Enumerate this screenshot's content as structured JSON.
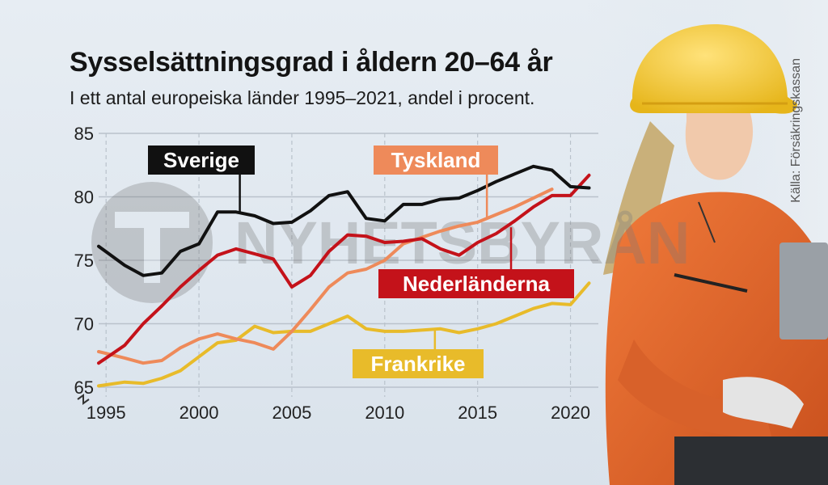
{
  "header": {
    "title": "Sysselsättningsgrad i åldern 20–64 år",
    "subtitle": "I ett antal europeiska länder 1995–2021, andel i procent.",
    "source": "Källa: Försäkringskassan"
  },
  "watermark": {
    "text": "NYHETSBYRÅN"
  },
  "colors": {
    "sverige": "#111111",
    "tyskland": "#ee8a5a",
    "nederlanderna": "#c4121a",
    "frankrike": "#e8bb2a",
    "grid": "#b9c2cb"
  },
  "chart_data": {
    "type": "line",
    "title": "Sysselsättningsgrad i åldern 20–64 år",
    "subtitle": "I ett antal europeiska länder 1995–2021, andel i procent.",
    "ylim": [
      65,
      85
    ],
    "xlim": [
      1994.6,
      2021.5
    ],
    "yticks": [
      65,
      70,
      75,
      80,
      85
    ],
    "xticks": [
      1995,
      2000,
      2005,
      2010,
      2015,
      2020
    ],
    "grid": true,
    "series": [
      {
        "name": "Sverige",
        "color": "#111111",
        "x": [
          1994.6,
          1996,
          1997,
          1998,
          1999,
          2000,
          2001,
          2002,
          2003,
          2004,
          2005,
          2006,
          2007,
          2008,
          2009,
          2010,
          2011,
          2012,
          2013,
          2014,
          2015,
          2016,
          2017,
          2018,
          2019,
          2020,
          2021
        ],
        "values": [
          76.1,
          74.6,
          73.8,
          74.0,
          75.7,
          76.3,
          78.8,
          78.8,
          78.5,
          77.9,
          78.0,
          78.9,
          80.1,
          80.4,
          78.3,
          78.1,
          79.4,
          79.4,
          79.8,
          79.9,
          80.5,
          81.2,
          81.8,
          82.4,
          82.1,
          80.8,
          80.7
        ]
      },
      {
        "name": "Tyskland",
        "color": "#ee8a5a",
        "x": [
          1994.6,
          1996,
          1997,
          1998,
          1999,
          2000,
          2001,
          2002,
          2003,
          2004,
          2005,
          2006,
          2007,
          2008,
          2009,
          2010,
          2011,
          2012,
          2013,
          2014,
          2015,
          2016,
          2017,
          2018,
          2019
        ],
        "values": [
          67.8,
          67.3,
          66.9,
          67.1,
          68.1,
          68.8,
          69.2,
          68.8,
          68.5,
          68.0,
          69.4,
          71.1,
          72.9,
          74.0,
          74.3,
          75.0,
          76.3,
          76.8,
          77.3,
          77.7,
          78.0,
          78.6,
          79.2,
          79.9,
          80.6
        ]
      },
      {
        "name": "Nederländerna",
        "color": "#c4121a",
        "x": [
          1994.6,
          1996,
          1997,
          1998,
          1999,
          2000,
          2001,
          2002,
          2003,
          2004,
          2005,
          2006,
          2007,
          2008,
          2009,
          2010,
          2011,
          2012,
          2013,
          2014,
          2015,
          2016,
          2017,
          2018,
          2019,
          2020,
          2021
        ],
        "values": [
          66.9,
          68.3,
          70.0,
          71.4,
          72.9,
          74.2,
          75.4,
          75.9,
          75.5,
          75.1,
          72.9,
          73.8,
          75.7,
          77.0,
          76.9,
          76.4,
          76.5,
          76.7,
          75.9,
          75.4,
          76.4,
          77.1,
          78.1,
          79.2,
          80.1,
          80.1,
          81.7
        ]
      },
      {
        "name": "Frankrike",
        "color": "#e8bb2a",
        "x": [
          1994.6,
          1996,
          1997,
          1998,
          1999,
          2000,
          2001,
          2002,
          2003,
          2004,
          2005,
          2006,
          2007,
          2008,
          2009,
          2010,
          2011,
          2012,
          2013,
          2014,
          2015,
          2016,
          2017,
          2018,
          2019,
          2020,
          2021
        ],
        "values": [
          65.1,
          65.4,
          65.3,
          65.7,
          66.3,
          67.4,
          68.5,
          68.7,
          69.8,
          69.3,
          69.4,
          69.4,
          70.0,
          70.6,
          69.6,
          69.4,
          69.4,
          69.5,
          69.6,
          69.3,
          69.6,
          70.0,
          70.6,
          71.2,
          71.6,
          71.5,
          73.2
        ]
      }
    ],
    "labels": [
      {
        "series": "Sverige",
        "text": "Sverige",
        "bg": "#111111",
        "fg": "#ffffff",
        "at": [
          2002.2,
          78.8
        ]
      },
      {
        "series": "Tyskland",
        "text": "Tyskland",
        "bg": "#ee8a5a",
        "fg": "#ffffff",
        "at": [
          2015.5,
          78.2
        ]
      },
      {
        "series": "Nederländerna",
        "text": "Nederländerna",
        "bg": "#c4121a",
        "fg": "#ffffff",
        "at": [
          2016.8,
          77.6
        ]
      },
      {
        "series": "Frankrike",
        "text": "Frankrike",
        "bg": "#e8bb2a",
        "fg": "#ffffff",
        "at": [
          2012.7,
          69.5
        ]
      }
    ]
  }
}
